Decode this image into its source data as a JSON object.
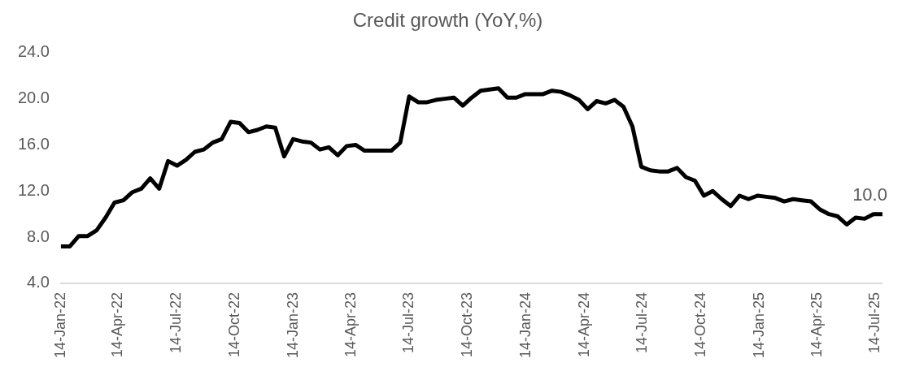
{
  "chart_data": {
    "type": "line",
    "title": "Credit growth (YoY,%)",
    "x": [
      "2022-01-14",
      "2022-01-28",
      "2022-02-11",
      "2022-02-25",
      "2022-03-11",
      "2022-03-25",
      "2022-04-08",
      "2022-04-22",
      "2022-05-06",
      "2022-05-20",
      "2022-06-03",
      "2022-06-17",
      "2022-07-01",
      "2022-07-15",
      "2022-07-29",
      "2022-08-12",
      "2022-08-26",
      "2022-09-09",
      "2022-09-23",
      "2022-10-07",
      "2022-10-21",
      "2022-11-04",
      "2022-11-18",
      "2022-12-02",
      "2022-12-16",
      "2022-12-30",
      "2023-01-13",
      "2023-01-27",
      "2023-02-10",
      "2023-02-24",
      "2023-03-10",
      "2023-03-24",
      "2023-04-07",
      "2023-04-21",
      "2023-05-05",
      "2023-05-19",
      "2023-06-02",
      "2023-06-16",
      "2023-06-30",
      "2023-07-14",
      "2023-07-28",
      "2023-08-11",
      "2023-08-25",
      "2023-09-08",
      "2023-09-22",
      "2023-10-06",
      "2023-10-20",
      "2023-11-03",
      "2023-11-17",
      "2023-12-01",
      "2023-12-15",
      "2023-12-29",
      "2024-01-12",
      "2024-01-26",
      "2024-02-09",
      "2024-02-23",
      "2024-03-08",
      "2024-03-22",
      "2024-04-05",
      "2024-04-19",
      "2024-05-03",
      "2024-05-17",
      "2024-05-31",
      "2024-06-14",
      "2024-06-28",
      "2024-07-12",
      "2024-07-26",
      "2024-08-09",
      "2024-08-23",
      "2024-09-06",
      "2024-09-20",
      "2024-10-04",
      "2024-10-18",
      "2024-11-01",
      "2024-11-15",
      "2024-11-29",
      "2024-12-13",
      "2024-12-27",
      "2025-01-10",
      "2025-01-24",
      "2025-02-07",
      "2025-02-21",
      "2025-03-07",
      "2025-03-21",
      "2025-04-04",
      "2025-04-18",
      "2025-05-02",
      "2025-05-16",
      "2025-05-30",
      "2025-06-13",
      "2025-06-27",
      "2025-07-11",
      "2025-07-25"
    ],
    "series": [
      {
        "color": "#000000",
        "values": [
          7.2,
          7.2,
          8.1,
          8.1,
          8.6,
          9.7,
          11.0,
          11.2,
          11.9,
          12.2,
          13.1,
          12.2,
          14.6,
          14.2,
          14.7,
          15.4,
          15.6,
          16.2,
          16.5,
          18.0,
          17.9,
          17.1,
          17.3,
          17.6,
          17.5,
          15.0,
          16.5,
          16.3,
          16.2,
          15.6,
          15.8,
          15.1,
          15.9,
          16.0,
          15.5,
          15.5,
          15.5,
          15.5,
          16.2,
          20.2,
          19.7,
          19.7,
          19.9,
          20.0,
          20.1,
          19.4,
          20.1,
          20.7,
          20.8,
          20.9,
          20.1,
          20.1,
          20.4,
          20.4,
          20.4,
          20.7,
          20.6,
          20.3,
          19.9,
          19.1,
          19.8,
          19.6,
          19.9,
          19.3,
          17.6,
          14.1,
          13.8,
          13.7,
          13.7,
          14.0,
          13.2,
          12.9,
          11.6,
          12.0,
          11.3,
          10.7,
          11.6,
          11.3,
          11.6,
          11.5,
          11.4,
          11.1,
          11.3,
          11.2,
          11.1,
          10.4,
          10.0,
          9.8,
          9.1,
          9.7,
          9.6,
          10.0,
          10.0
        ],
        "value_labels": [
          null,
          null,
          null,
          null,
          null,
          null,
          null,
          null,
          null,
          null,
          null,
          null,
          null,
          null,
          null,
          null,
          null,
          null,
          null,
          null,
          null,
          null,
          null,
          null,
          null,
          null,
          null,
          null,
          null,
          null,
          null,
          null,
          null,
          null,
          null,
          null,
          null,
          null,
          null,
          null,
          null,
          null,
          null,
          null,
          null,
          null,
          null,
          null,
          null,
          null,
          null,
          null,
          null,
          null,
          null,
          null,
          null,
          null,
          null,
          null,
          null,
          null,
          null,
          null,
          null,
          null,
          null,
          null,
          null,
          null,
          null,
          null,
          null,
          null,
          null,
          null,
          null,
          null,
          null,
          null,
          null,
          null,
          null,
          null,
          null,
          null,
          null,
          null,
          null,
          null,
          null,
          null,
          "10.0"
        ]
      }
    ],
    "xlim": [
      "2022-01-14",
      "2025-07-25"
    ],
    "xticks": [
      {
        "value": "2022-01-14",
        "label": "14-Jan-22"
      },
      {
        "value": "2022-04-14",
        "label": "14-Apr-22"
      },
      {
        "value": "2022-07-14",
        "label": "14-Jul-22"
      },
      {
        "value": "2022-10-14",
        "label": "14-Oct-22"
      },
      {
        "value": "2023-01-14",
        "label": "14-Jan-23"
      },
      {
        "value": "2023-04-14",
        "label": "14-Apr-23"
      },
      {
        "value": "2023-07-14",
        "label": "14-Jul-23"
      },
      {
        "value": "2023-10-14",
        "label": "14-Oct-23"
      },
      {
        "value": "2024-01-14",
        "label": "14-Jan-24"
      },
      {
        "value": "2024-04-14",
        "label": "14-Apr-24"
      },
      {
        "value": "2024-07-14",
        "label": "14-Jul-24"
      },
      {
        "value": "2024-10-14",
        "label": "14-Oct-24"
      },
      {
        "value": "2025-01-14",
        "label": "14-Jan-25"
      },
      {
        "value": "2025-04-14",
        "label": "14-Apr-25"
      },
      {
        "value": "2025-07-14",
        "label": "14-Jul-25"
      }
    ],
    "ylim": [
      4,
      24
    ],
    "yticks": [
      {
        "value": 4,
        "label": "4.0"
      },
      {
        "value": 8,
        "label": "8.0"
      },
      {
        "value": 12,
        "label": "12.0"
      },
      {
        "value": 16,
        "label": "16.0"
      },
      {
        "value": 20,
        "label": "20.0"
      },
      {
        "value": 24,
        "label": "24.0"
      }
    ],
    "grid": false,
    "legend": false,
    "marker": "none",
    "line_style": "solid"
  }
}
